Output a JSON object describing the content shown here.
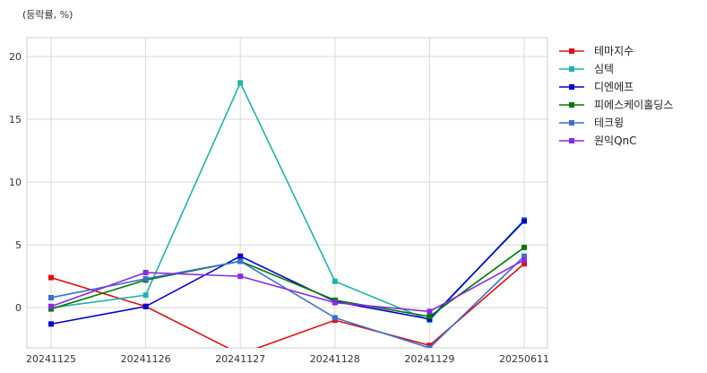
{
  "chart_data": {
    "type": "line",
    "unit_label": "(등락률, %)",
    "categories": [
      "20241125",
      "20241126",
      "20241127",
      "20241128",
      "20241129",
      "20250611"
    ],
    "ylim": [
      -3.2,
      21.5
    ],
    "yticks": [
      0,
      5,
      10,
      15,
      20
    ],
    "yticks_labels": [
      "0",
      "5",
      "10",
      "15",
      "20"
    ],
    "grid": true,
    "legend_position": "right",
    "series": [
      {
        "name": "테마지수",
        "color": "#dd1111",
        "values": [
          2.4,
          0.1,
          -3.7,
          -1.0,
          -3.0,
          3.5
        ]
      },
      {
        "name": "심텍",
        "color": "#20b2aa",
        "values": [
          0.0,
          1.0,
          17.9,
          2.1,
          -1.0,
          7.0
        ]
      },
      {
        "name": "디엔에프",
        "color": "#0000cc",
        "values": [
          -1.3,
          0.1,
          4.1,
          0.5,
          -0.9,
          6.9
        ]
      },
      {
        "name": "피에스케이홀딩스",
        "color": "#007a00",
        "values": [
          -0.1,
          2.2,
          3.7,
          0.6,
          -0.7,
          4.8
        ]
      },
      {
        "name": "테크윙",
        "color": "#3a6fd0",
        "values": [
          0.8,
          2.3,
          3.7,
          -0.8,
          -3.2,
          4.1
        ]
      },
      {
        "name": "원익QnC",
        "color": "#8a2be2",
        "values": [
          0.1,
          2.8,
          2.5,
          0.4,
          -0.3,
          3.8
        ]
      }
    ]
  }
}
